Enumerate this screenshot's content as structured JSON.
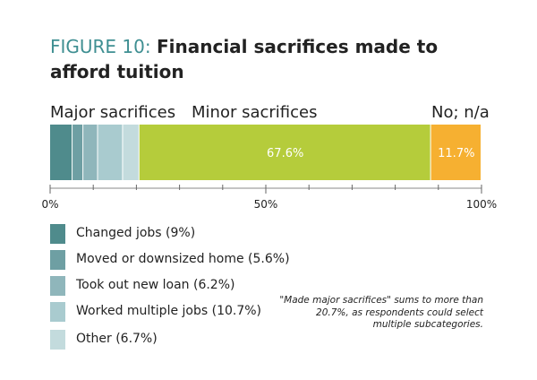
{
  "title": {
    "prefix": "FIGURE 10:",
    "text": "Financial sacrifices made to afford tuition"
  },
  "group_labels": {
    "major": "Major sacrifices",
    "minor": "Minor sacrifices",
    "none": "No; n/a"
  },
  "note": "\"Made major sacrifices\" sums to more than 20.7%, as respondents could select multiple subcategories.",
  "colors": {
    "changed_jobs": "#4f8b8c",
    "moved": "#6e9fa3",
    "new_loan": "#8fb6bb",
    "multiple_jobs": "#a9cbcf",
    "other": "#c3dbdd",
    "minor": "#b5cc3b",
    "none": "#f6b031"
  },
  "chart_data": {
    "type": "bar",
    "orientation": "horizontal",
    "stacked": true,
    "title": "Financial sacrifices made to afford tuition",
    "xlim": [
      0,
      100
    ],
    "x_ticks": [
      "0%",
      "50%",
      "100%"
    ],
    "segments": [
      {
        "name": "Changed jobs",
        "value": 5.2,
        "group": "major",
        "color_key": "changed_jobs",
        "label": ""
      },
      {
        "name": "Moved or downsized home",
        "value": 2.5,
        "group": "major",
        "color_key": "moved",
        "label": ""
      },
      {
        "name": "Took out new loan",
        "value": 3.4,
        "group": "major",
        "color_key": "new_loan",
        "label": ""
      },
      {
        "name": "Worked multiple jobs",
        "value": 5.8,
        "group": "major",
        "color_key": "multiple_jobs",
        "label": ""
      },
      {
        "name": "Other",
        "value": 3.8,
        "group": "major",
        "color_key": "other",
        "label": ""
      },
      {
        "name": "Minor sacrifices",
        "value": 67.6,
        "group": "minor",
        "color_key": "minor",
        "label": "67.6%"
      },
      {
        "name": "No; n/a",
        "value": 11.7,
        "group": "none",
        "color_key": "none",
        "label": "11.7%"
      }
    ],
    "legend": [
      {
        "label": "Changed jobs (9%)",
        "color_key": "changed_jobs"
      },
      {
        "label": "Moved or downsized home (5.6%)",
        "color_key": "moved"
      },
      {
        "label": "Took out new loan (6.2%)",
        "color_key": "new_loan"
      },
      {
        "label": "Worked multiple jobs (10.7%)",
        "color_key": "multiple_jobs"
      },
      {
        "label": "Other (6.7%)",
        "color_key": "other"
      }
    ]
  }
}
